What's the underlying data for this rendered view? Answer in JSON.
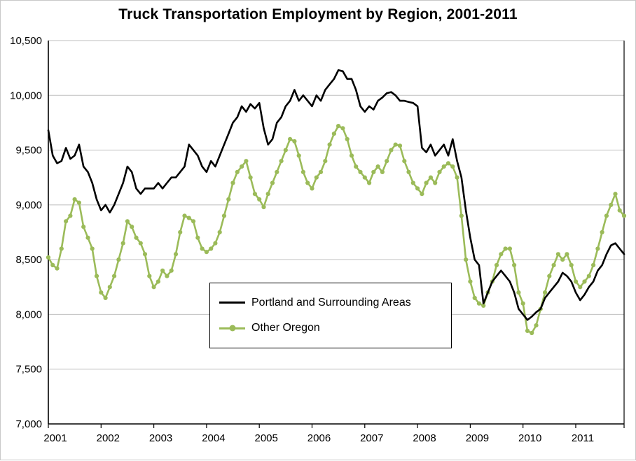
{
  "chart_data": {
    "type": "line",
    "title": "Truck Transportation Employment by Region, 2001-2011",
    "x_years": [
      "2001",
      "2002",
      "2003",
      "2004",
      "2005",
      "2006",
      "2007",
      "2008",
      "2009",
      "2010",
      "2011"
    ],
    "x_frequency": "monthly",
    "ylim": [
      7000,
      10500
    ],
    "y_step": 500,
    "grid": true,
    "gridline_color": "#bfbfbf",
    "axis_color": "#000000",
    "legend_position": "inside-bottom-center",
    "series": [
      {
        "name": "Portland and Surrounding Areas",
        "color": "#000000",
        "marker": "none",
        "values": [
          9680,
          9450,
          9380,
          9400,
          9520,
          9420,
          9450,
          9550,
          9350,
          9300,
          9200,
          9050,
          8950,
          9000,
          8930,
          9000,
          9100,
          9200,
          9350,
          9300,
          9150,
          9100,
          9150,
          9150,
          9150,
          9200,
          9150,
          9200,
          9250,
          9250,
          9300,
          9350,
          9550,
          9500,
          9450,
          9350,
          9300,
          9400,
          9350,
          9450,
          9550,
          9650,
          9750,
          9800,
          9900,
          9850,
          9920,
          9880,
          9930,
          9700,
          9550,
          9600,
          9750,
          9800,
          9900,
          9950,
          10050,
          9950,
          10000,
          9950,
          9900,
          10000,
          9950,
          10050,
          10100,
          10150,
          10230,
          10220,
          10150,
          10150,
          10050,
          9900,
          9850,
          9900,
          9870,
          9950,
          9980,
          10020,
          10030,
          10000,
          9950,
          9950,
          9940,
          9930,
          9900,
          9520,
          9480,
          9550,
          9450,
          9500,
          9550,
          9450,
          9600,
          9400,
          9250,
          8950,
          8700,
          8500,
          8450,
          8100,
          8200,
          8300,
          8350,
          8400,
          8350,
          8300,
          8200,
          8050,
          8000,
          7950,
          7980,
          8020,
          8050,
          8150,
          8200,
          8250,
          8300,
          8380,
          8350,
          8300,
          8200,
          8130,
          8180,
          8250,
          8300,
          8400,
          8450,
          8550,
          8630,
          8650,
          8600,
          8550
        ]
      },
      {
        "name": "Other Oregon",
        "color": "#9BBB59",
        "marker": "circle",
        "values": [
          8520,
          8450,
          8420,
          8600,
          8850,
          8900,
          9050,
          9020,
          8800,
          8700,
          8600,
          8350,
          8200,
          8150,
          8250,
          8350,
          8500,
          8650,
          8850,
          8800,
          8700,
          8650,
          8550,
          8350,
          8250,
          8300,
          8400,
          8350,
          8400,
          8550,
          8750,
          8900,
          8880,
          8850,
          8700,
          8600,
          8570,
          8600,
          8650,
          8750,
          8900,
          9050,
          9200,
          9300,
          9350,
          9400,
          9250,
          9100,
          9050,
          8980,
          9100,
          9200,
          9300,
          9400,
          9500,
          9600,
          9580,
          9450,
          9300,
          9200,
          9150,
          9250,
          9300,
          9400,
          9550,
          9650,
          9720,
          9700,
          9600,
          9450,
          9350,
          9300,
          9250,
          9200,
          9300,
          9350,
          9300,
          9400,
          9500,
          9550,
          9540,
          9400,
          9300,
          9200,
          9150,
          9100,
          9200,
          9250,
          9200,
          9300,
          9350,
          9380,
          9350,
          9250,
          8900,
          8500,
          8300,
          8150,
          8100,
          8080,
          8200,
          8300,
          8450,
          8550,
          8600,
          8600,
          8450,
          8200,
          8100,
          7850,
          7830,
          7900,
          8050,
          8200,
          8350,
          8450,
          8550,
          8500,
          8550,
          8450,
          8300,
          8250,
          8300,
          8350,
          8450,
          8600,
          8750,
          8900,
          9000,
          9100,
          8950,
          8900
        ]
      }
    ]
  }
}
